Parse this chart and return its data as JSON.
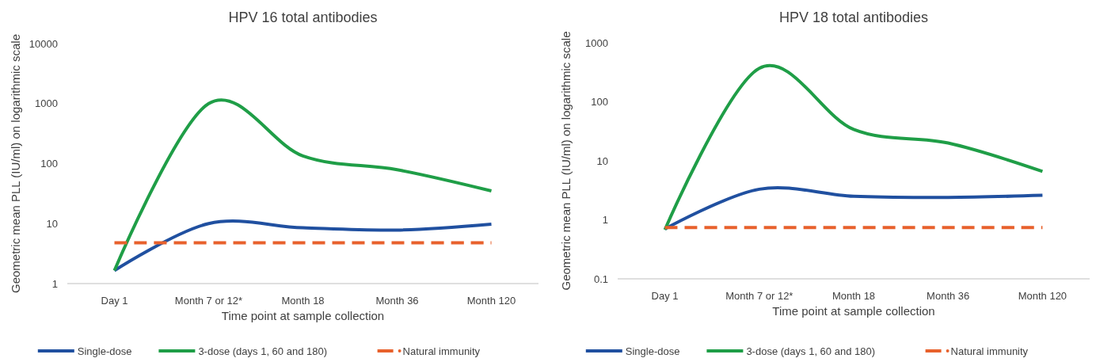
{
  "chart_data": [
    {
      "type": "line",
      "title": "HPV 16 total antibodies",
      "xlabel": "Time point at sample collection",
      "ylabel": "Geometric mean PLL (IU/ml) on logarithmic scale",
      "categories": [
        "Day 1",
        "Month 7 or 12*",
        "Month 18",
        "Month 36",
        "Month 120"
      ],
      "log": "y",
      "ylim": [
        1,
        10000
      ],
      "yticks": [
        1,
        10,
        100,
        1000,
        10000
      ],
      "grid": false,
      "legend": "bottom",
      "marker": "none",
      "series": [
        {
          "name": "Single-dose",
          "color": "#2050a0",
          "values": [
            1.65,
            10,
            8.5,
            7.8,
            9.8
          ]
        },
        {
          "name": "3-dose (days 1, 60 and 180)",
          "color": "#1f9e47",
          "values": [
            1.65,
            1000,
            134,
            79,
            35
          ]
        },
        {
          "name": "Natural immunity",
          "color": "#e8612c",
          "line_style": "dashed",
          "values": [
            4.8,
            4.8,
            4.8,
            4.8,
            4.8
          ]
        }
      ]
    },
    {
      "type": "line",
      "title": "HPV 18 total antibodies",
      "xlabel": "Time point at sample collection",
      "ylabel": "Geometric mean PLL (IU/ml) on logarithmic scale",
      "categories": [
        "Day 1",
        "Month 7 or 12*",
        "Month 18",
        "Month 36",
        "Month 120"
      ],
      "log": "y",
      "ylim": [
        0.1,
        1000
      ],
      "yticks": [
        0.1,
        1,
        10,
        100,
        1000
      ],
      "grid": false,
      "legend": "bottom",
      "marker": "none",
      "series": [
        {
          "name": "Single-dose",
          "color": "#2050a0",
          "values": [
            0.7,
            3.3,
            2.5,
            2.4,
            2.6
          ]
        },
        {
          "name": "3-dose (days 1, 60 and 180)",
          "color": "#1f9e47",
          "values": [
            0.68,
            370,
            34,
            20,
            6.6
          ]
        },
        {
          "name": "Natural immunity",
          "color": "#e8612c",
          "line_style": "dashed",
          "values": [
            0.74,
            0.74,
            0.74,
            0.74,
            0.74
          ]
        }
      ]
    }
  ]
}
